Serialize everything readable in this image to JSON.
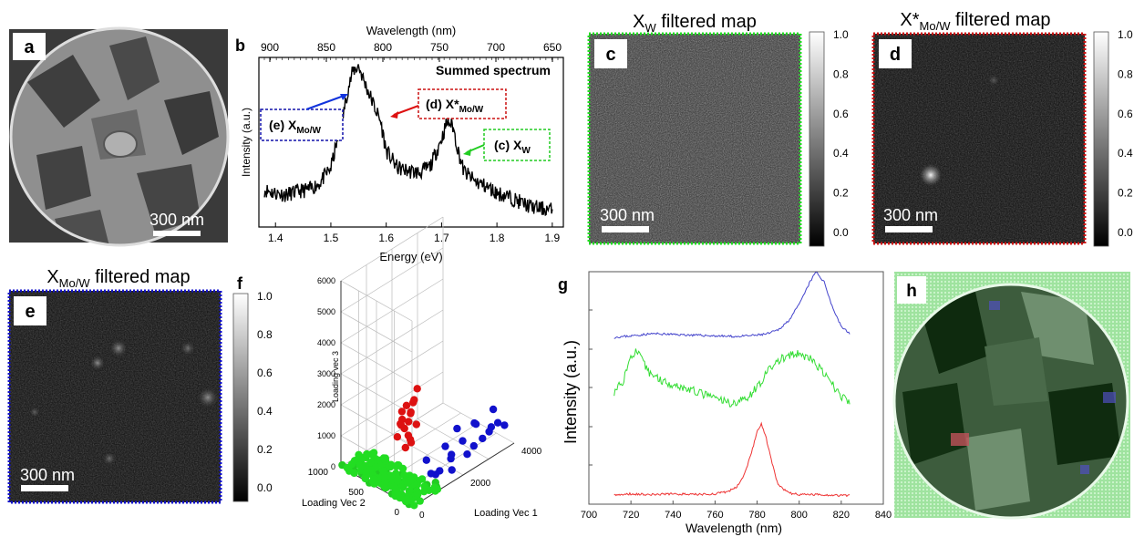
{
  "panels": {
    "a": {
      "letter": "a",
      "scalebar": "300 nm"
    },
    "b": {
      "letter": "b"
    },
    "c": {
      "letter": "c",
      "title": "X_W filtered map",
      "title_main": "X",
      "title_sub": "W",
      "title_rest": " filtered map",
      "scalebar": "300 nm",
      "frame_color": "#22dd22"
    },
    "d": {
      "letter": "d",
      "title_main": "X*",
      "title_sub": "Mo/W",
      "title_rest": " filtered map",
      "scalebar": "300 nm",
      "frame_color": "#cc1111"
    },
    "e": {
      "letter": "e",
      "title_main": "X",
      "title_sub": "Mo/W",
      "title_rest": " filtered map",
      "scalebar": "300 nm",
      "frame_color": "#1111cc"
    },
    "f": {
      "letter": "f"
    },
    "g": {
      "letter": "g"
    },
    "h": {
      "letter": "h"
    }
  },
  "colorbar": {
    "ticks": [
      "1.0",
      "0.8",
      "0.6",
      "0.4",
      "0.2",
      "0.0"
    ]
  },
  "chart_data": [
    {
      "id": "b",
      "type": "line",
      "title": "Summed spectrum",
      "xlabel": "Energy (eV)",
      "ylabel": "Intensity (a.u.)",
      "top_xlabel": "Wavelength (nm)",
      "xlim": [
        1.37,
        1.92
      ],
      "xticks": [
        "1.4",
        "1.5",
        "1.6",
        "1.7",
        "1.8",
        "1.9"
      ],
      "top_xticks": [
        "900",
        "850",
        "800",
        "750",
        "700",
        "650"
      ],
      "annotations": [
        {
          "label_main": "(e) X",
          "label_sub": "Mo/W",
          "color": "#1111aa",
          "points_to_x": 1.545
        },
        {
          "label_main": "(d) X*",
          "label_sub": "Mo/W",
          "color": "#cc1111",
          "points_to_x": 1.585
        },
        {
          "label_main": "(c) X",
          "label_sub": "W",
          "color": "#22cc22",
          "points_to_x": 1.72
        }
      ],
      "x": [
        1.38,
        1.4,
        1.42,
        1.44,
        1.46,
        1.48,
        1.5,
        1.52,
        1.53,
        1.54,
        1.55,
        1.56,
        1.57,
        1.58,
        1.59,
        1.6,
        1.62,
        1.64,
        1.66,
        1.68,
        1.7,
        1.71,
        1.72,
        1.73,
        1.74,
        1.76,
        1.78,
        1.8,
        1.82,
        1.84,
        1.86,
        1.88,
        1.9
      ],
      "y": [
        0.22,
        0.2,
        0.19,
        0.21,
        0.22,
        0.26,
        0.35,
        0.62,
        0.8,
        0.92,
        0.95,
        0.86,
        0.78,
        0.7,
        0.62,
        0.45,
        0.35,
        0.33,
        0.32,
        0.36,
        0.52,
        0.62,
        0.6,
        0.45,
        0.33,
        0.27,
        0.24,
        0.2,
        0.18,
        0.15,
        0.12,
        0.11,
        0.1
      ]
    },
    {
      "id": "f",
      "type": "scatter",
      "xlabel": "Loading Vec 1",
      "ylabel": "Loading Vec 2",
      "zlabel": "Loading vec 3",
      "zticks": [
        "6000",
        "5000",
        "4000",
        "3000",
        "2000",
        "1000",
        "0"
      ],
      "vec2_ticks": [
        "1000",
        "500",
        "0"
      ],
      "vec1_ticks": [
        "0",
        "2000",
        "4000"
      ],
      "series": [
        {
          "color": "#22cc22",
          "points": [
            [
              0,
              600,
              0
            ],
            [
              100,
              400,
              50
            ],
            [
              200,
              900,
              20
            ],
            [
              50,
              1000,
              30
            ],
            [
              300,
              700,
              10
            ],
            [
              400,
              500,
              40
            ],
            [
              500,
              300,
              20
            ],
            [
              150,
              200,
              60
            ],
            [
              250,
              800,
              0
            ],
            [
              350,
              100,
              30
            ],
            [
              450,
              650,
              50
            ],
            [
              600,
              400,
              10
            ],
            [
              700,
              200,
              20
            ],
            [
              50,
              300,
              10
            ],
            [
              120,
              750,
              40
            ],
            [
              800,
              100,
              0
            ],
            [
              900,
              250,
              30
            ],
            [
              1000,
              150,
              10
            ],
            [
              550,
              550,
              20
            ],
            [
              650,
              600,
              60
            ],
            [
              750,
              300,
              40
            ],
            [
              200,
              150,
              20
            ],
            [
              300,
              350,
              50
            ],
            [
              400,
              900,
              10
            ],
            [
              1100,
              50,
              20
            ],
            [
              1200,
              100,
              40
            ],
            [
              850,
              450,
              30
            ],
            [
              950,
              350,
              10
            ],
            [
              100,
              850,
              20
            ],
            [
              20,
              50,
              10
            ]
          ]
        },
        {
          "color": "#1111cc",
          "points": [
            [
              1200,
              100,
              300
            ],
            [
              1500,
              150,
              200
            ],
            [
              1800,
              100,
              500
            ],
            [
              2100,
              200,
              350
            ],
            [
              2400,
              150,
              700
            ],
            [
              2700,
              100,
              450
            ],
            [
              3000,
              200,
              900
            ],
            [
              3300,
              100,
              600
            ],
            [
              3600,
              150,
              1100
            ],
            [
              3900,
              100,
              500
            ],
            [
              1400,
              300,
              400
            ],
            [
              2000,
              250,
              600
            ],
            [
              2600,
              300,
              800
            ],
            [
              3200,
              250,
              700
            ],
            [
              1700,
              50,
              250
            ],
            [
              2300,
              50,
              450
            ],
            [
              2900,
              50,
              650
            ],
            [
              3500,
              50,
              850
            ],
            [
              1300,
              200,
              150
            ],
            [
              3800,
              250,
              300
            ]
          ]
        },
        {
          "color": "#dd1111",
          "points": [
            [
              300,
              200,
              1500
            ],
            [
              400,
              250,
              2000
            ],
            [
              500,
              200,
              2500
            ],
            [
              350,
              150,
              1800
            ],
            [
              450,
              300,
              2200
            ],
            [
              550,
              250,
              1700
            ],
            [
              600,
              200,
              2800
            ],
            [
              650,
              250,
              2400
            ],
            [
              400,
              350,
              1600
            ],
            [
              500,
              150,
              3000
            ],
            [
              700,
              300,
              2000
            ],
            [
              300,
              250,
              2600
            ],
            [
              450,
              100,
              2300
            ],
            [
              550,
              350,
              1900
            ],
            [
              620,
              150,
              3300
            ],
            [
              380,
              300,
              2100
            ],
            [
              520,
              200,
              1550
            ],
            [
              480,
              250,
              2700
            ]
          ]
        }
      ]
    },
    {
      "id": "g",
      "type": "line",
      "xlabel": "Wavelength (nm)",
      "ylabel": "Intensity (a.u.)",
      "xlim": [
        700,
        840
      ],
      "xticks": [
        "700",
        "720",
        "740",
        "760",
        "780",
        "800",
        "820",
        "840"
      ],
      "series": [
        {
          "color": "#4444cc",
          "x": [
            712,
            720,
            730,
            740,
            750,
            760,
            770,
            780,
            785,
            790,
            795,
            800,
            805,
            808,
            812,
            816,
            820,
            824
          ],
          "y": [
            0.05,
            0.07,
            0.1,
            0.09,
            0.08,
            0.07,
            0.06,
            0.08,
            0.1,
            0.15,
            0.28,
            0.5,
            0.8,
            0.95,
            0.8,
            0.45,
            0.2,
            0.1
          ]
        },
        {
          "color": "#33dd33",
          "x": [
            712,
            716,
            720,
            722,
            724,
            728,
            732,
            736,
            740,
            744,
            748,
            752,
            756,
            760,
            764,
            768,
            772,
            776,
            780,
            784,
            788,
            792,
            796,
            800,
            804,
            808,
            812,
            816,
            820,
            824
          ],
          "y": [
            0.3,
            0.45,
            0.8,
            0.88,
            0.82,
            0.6,
            0.52,
            0.45,
            0.42,
            0.38,
            0.34,
            0.3,
            0.26,
            0.22,
            0.18,
            0.15,
            0.18,
            0.25,
            0.38,
            0.55,
            0.7,
            0.78,
            0.82,
            0.84,
            0.8,
            0.7,
            0.55,
            0.4,
            0.25,
            0.15
          ]
        },
        {
          "color": "#ee3333",
          "x": [
            712,
            720,
            730,
            740,
            750,
            760,
            765,
            770,
            774,
            777,
            780,
            782,
            784,
            787,
            790,
            795,
            800,
            810,
            820,
            824
          ],
          "y": [
            0.02,
            0.04,
            0.03,
            0.04,
            0.03,
            0.04,
            0.06,
            0.12,
            0.3,
            0.55,
            0.85,
            0.95,
            0.8,
            0.45,
            0.15,
            0.05,
            0.03,
            0.03,
            0.02,
            0.02
          ]
        }
      ]
    }
  ]
}
